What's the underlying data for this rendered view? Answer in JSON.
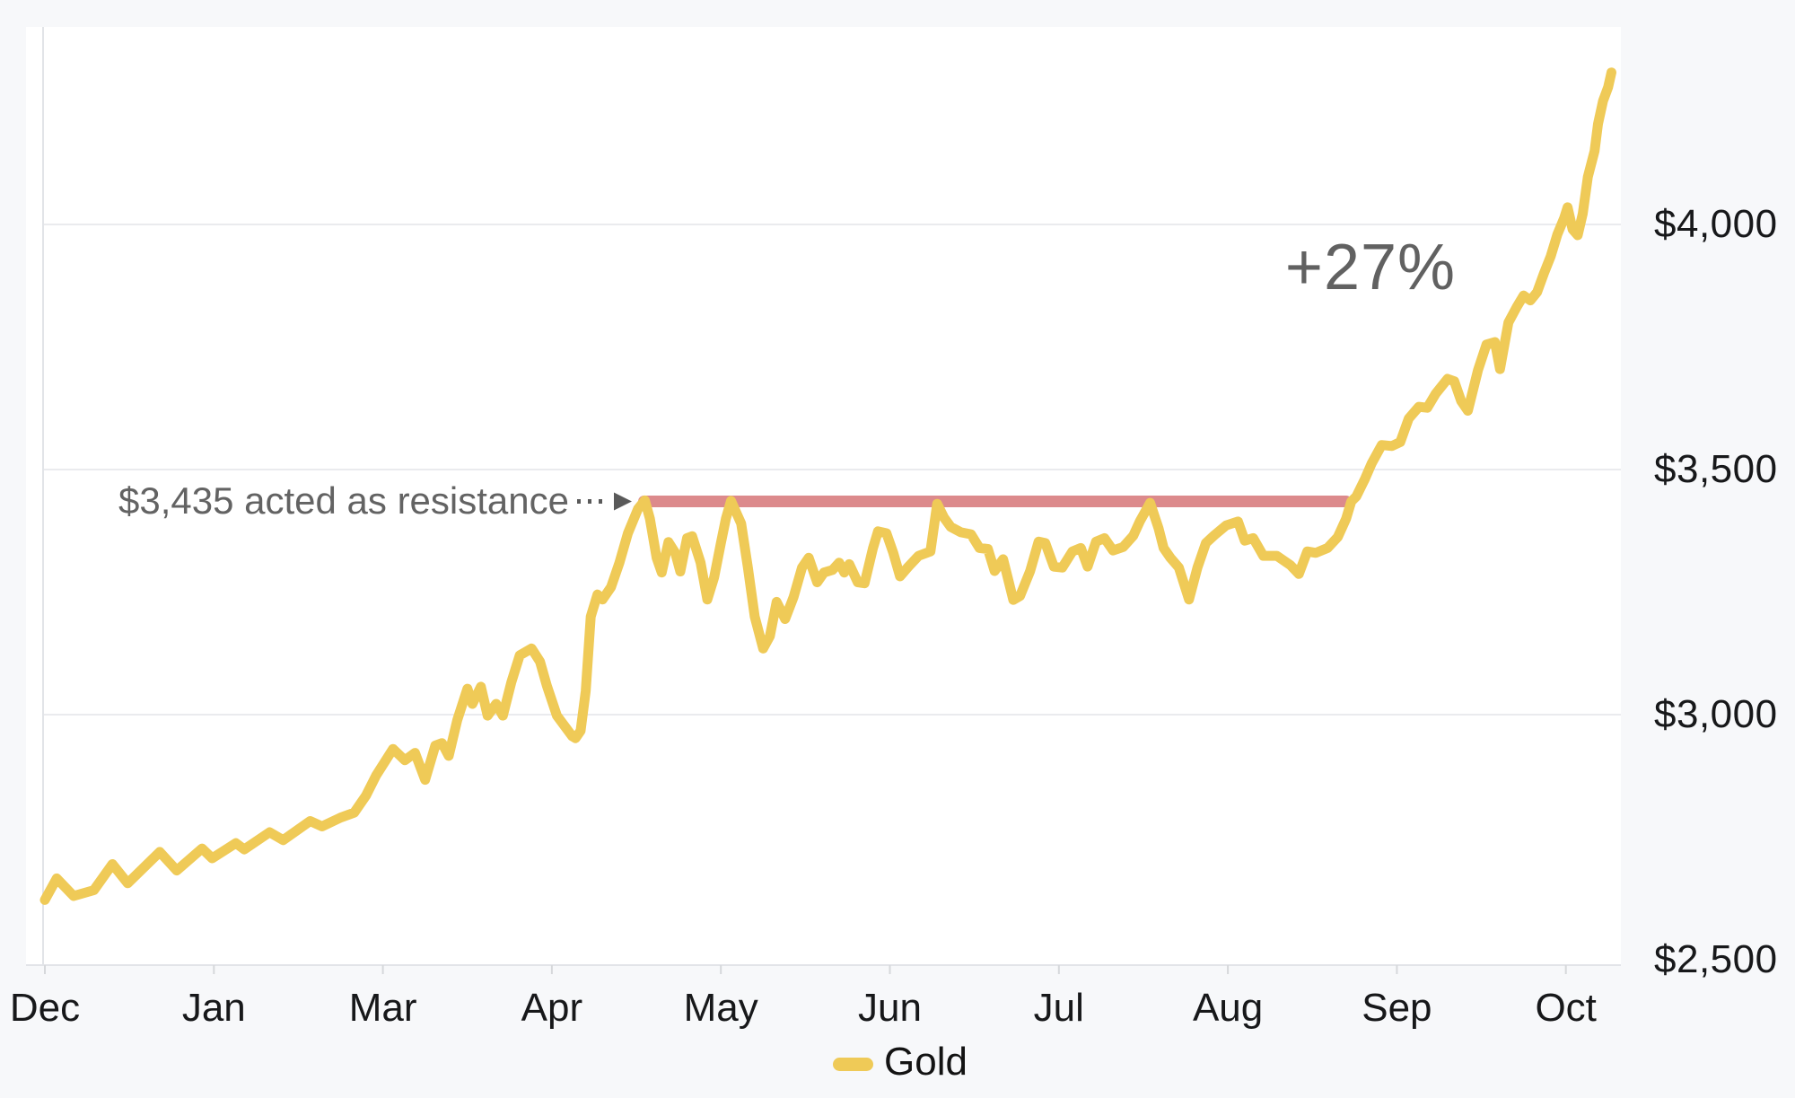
{
  "page": {
    "background": "#F7F8FA"
  },
  "chart_data": {
    "type": "line",
    "title": "",
    "xlabel": "",
    "ylabel": "",
    "x_unit": "month ticks, 0 = Dec, spacing = one x-axis label",
    "ylim": [
      2490,
      4420
    ],
    "grid": "horizontal",
    "legend_position": "bottom-center",
    "x_axis": {
      "labels": [
        "Dec",
        "Jan",
        "Mar",
        "Apr",
        "May",
        "Jun",
        "Jul",
        "Aug",
        "Sep",
        "Oct"
      ]
    },
    "y_axis": {
      "ticks": [
        {
          "label": "$4,000",
          "value": 4000
        },
        {
          "label": "$3,500",
          "value": 3500
        },
        {
          "label": "$3,000",
          "value": 3000
        },
        {
          "label": "$2,500",
          "value": 2500
        }
      ]
    },
    "series": [
      {
        "name": "Gold",
        "color": "#EFCA57",
        "line_width": 11,
        "points": [
          [
            0.0,
            2622
          ],
          [
            0.07,
            2666
          ],
          [
            0.17,
            2630
          ],
          [
            0.29,
            2642
          ],
          [
            0.4,
            2695
          ],
          [
            0.49,
            2656
          ],
          [
            0.68,
            2720
          ],
          [
            0.78,
            2682
          ],
          [
            0.93,
            2727
          ],
          [
            0.99,
            2707
          ],
          [
            1.13,
            2738
          ],
          [
            1.18,
            2725
          ],
          [
            1.33,
            2760
          ],
          [
            1.41,
            2744
          ],
          [
            1.57,
            2783
          ],
          [
            1.64,
            2772
          ],
          [
            1.75,
            2790
          ],
          [
            1.83,
            2800
          ],
          [
            1.9,
            2835
          ],
          [
            1.96,
            2876
          ],
          [
            2.06,
            2930
          ],
          [
            2.13,
            2907
          ],
          [
            2.19,
            2922
          ],
          [
            2.25,
            2867
          ],
          [
            2.31,
            2937
          ],
          [
            2.35,
            2942
          ],
          [
            2.39,
            2916
          ],
          [
            2.44,
            2989
          ],
          [
            2.5,
            3053
          ],
          [
            2.53,
            3022
          ],
          [
            2.58,
            3057
          ],
          [
            2.62,
            2998
          ],
          [
            2.67,
            3022
          ],
          [
            2.71,
            2998
          ],
          [
            2.76,
            3066
          ],
          [
            2.81,
            3121
          ],
          [
            2.88,
            3135
          ],
          [
            2.93,
            3108
          ],
          [
            2.97,
            3059
          ],
          [
            3.03,
            2998
          ],
          [
            3.12,
            2956
          ],
          [
            3.14,
            2952
          ],
          [
            3.17,
            2967
          ],
          [
            3.2,
            3048
          ],
          [
            3.23,
            3200
          ],
          [
            3.27,
            3245
          ],
          [
            3.3,
            3235
          ],
          [
            3.35,
            3260
          ],
          [
            3.4,
            3310
          ],
          [
            3.45,
            3370
          ],
          [
            3.51,
            3420
          ],
          [
            3.55,
            3437
          ],
          [
            3.58,
            3400
          ],
          [
            3.62,
            3320
          ],
          [
            3.65,
            3290
          ],
          [
            3.69,
            3352
          ],
          [
            3.73,
            3330
          ],
          [
            3.76,
            3292
          ],
          [
            3.8,
            3360
          ],
          [
            3.83,
            3364
          ],
          [
            3.88,
            3310
          ],
          [
            3.92,
            3235
          ],
          [
            3.96,
            3280
          ],
          [
            4.0,
            3350
          ],
          [
            4.03,
            3400
          ],
          [
            4.06,
            3436
          ],
          [
            4.12,
            3390
          ],
          [
            4.16,
            3300
          ],
          [
            4.2,
            3200
          ],
          [
            4.25,
            3135
          ],
          [
            4.29,
            3160
          ],
          [
            4.33,
            3230
          ],
          [
            4.38,
            3195
          ],
          [
            4.43,
            3240
          ],
          [
            4.48,
            3300
          ],
          [
            4.52,
            3320
          ],
          [
            4.57,
            3270
          ],
          [
            4.61,
            3290
          ],
          [
            4.66,
            3295
          ],
          [
            4.7,
            3310
          ],
          [
            4.73,
            3290
          ],
          [
            4.76,
            3307
          ],
          [
            4.81,
            3270
          ],
          [
            4.85,
            3268
          ],
          [
            4.9,
            3340
          ],
          [
            4.93,
            3374
          ],
          [
            4.98,
            3370
          ],
          [
            5.02,
            3330
          ],
          [
            5.06,
            3282
          ],
          [
            5.11,
            3302
          ],
          [
            5.17,
            3324
          ],
          [
            5.24,
            3333
          ],
          [
            5.28,
            3430
          ],
          [
            5.32,
            3402
          ],
          [
            5.36,
            3383
          ],
          [
            5.42,
            3372
          ],
          [
            5.48,
            3368
          ],
          [
            5.53,
            3340
          ],
          [
            5.58,
            3338
          ],
          [
            5.62,
            3293
          ],
          [
            5.67,
            3317
          ],
          [
            5.73,
            3234
          ],
          [
            5.77,
            3242
          ],
          [
            5.83,
            3293
          ],
          [
            5.88,
            3353
          ],
          [
            5.92,
            3350
          ],
          [
            5.97,
            3302
          ],
          [
            6.02,
            3300
          ],
          [
            6.08,
            3333
          ],
          [
            6.13,
            3340
          ],
          [
            6.17,
            3302
          ],
          [
            6.22,
            3353
          ],
          [
            6.27,
            3360
          ],
          [
            6.32,
            3335
          ],
          [
            6.38,
            3342
          ],
          [
            6.44,
            3365
          ],
          [
            6.48,
            3395
          ],
          [
            6.54,
            3432
          ],
          [
            6.59,
            3380
          ],
          [
            6.62,
            3340
          ],
          [
            6.66,
            3320
          ],
          [
            6.71,
            3300
          ],
          [
            6.77,
            3235
          ],
          [
            6.82,
            3300
          ],
          [
            6.87,
            3350
          ],
          [
            6.92,
            3366
          ],
          [
            6.99,
            3386
          ],
          [
            7.06,
            3394
          ],
          [
            7.1,
            3355
          ],
          [
            7.15,
            3360
          ],
          [
            7.21,
            3324
          ],
          [
            7.29,
            3324
          ],
          [
            7.37,
            3305
          ],
          [
            7.42,
            3287
          ],
          [
            7.47,
            3333
          ],
          [
            7.52,
            3330
          ],
          [
            7.59,
            3340
          ],
          [
            7.65,
            3362
          ],
          [
            7.7,
            3400
          ],
          [
            7.73,
            3435
          ],
          [
            7.76,
            3445
          ],
          [
            7.81,
            3480
          ],
          [
            7.85,
            3512
          ],
          [
            7.91,
            3550
          ],
          [
            7.97,
            3548
          ],
          [
            8.02,
            3556
          ],
          [
            8.07,
            3604
          ],
          [
            8.13,
            3628
          ],
          [
            8.18,
            3626
          ],
          [
            8.23,
            3655
          ],
          [
            8.3,
            3685
          ],
          [
            8.34,
            3680
          ],
          [
            8.38,
            3640
          ],
          [
            8.42,
            3620
          ],
          [
            8.48,
            3703
          ],
          [
            8.53,
            3755
          ],
          [
            8.58,
            3760
          ],
          [
            8.61,
            3705
          ],
          [
            8.66,
            3800
          ],
          [
            8.71,
            3832
          ],
          [
            8.75,
            3855
          ],
          [
            8.79,
            3845
          ],
          [
            8.83,
            3862
          ],
          [
            8.87,
            3900
          ],
          [
            8.91,
            3935
          ],
          [
            8.95,
            3980
          ],
          [
            8.99,
            4013
          ],
          [
            9.01,
            4035
          ],
          [
            9.04,
            3990
          ],
          [
            9.07,
            3978
          ],
          [
            9.1,
            4022
          ],
          [
            9.13,
            4097
          ],
          [
            9.17,
            4150
          ],
          [
            9.19,
            4205
          ],
          [
            9.22,
            4252
          ],
          [
            9.25,
            4280
          ],
          [
            9.27,
            4310
          ]
        ]
      }
    ],
    "resistance": {
      "label": "$3,435 acted as resistance",
      "value": 3435,
      "t_start": 3.545,
      "t_end": 7.7,
      "color": "#DC8A8C",
      "label_color": "#636363",
      "arrow_color": "#5A5A5A"
    },
    "annotation_pct": {
      "text": "+27%",
      "color": "#616161"
    },
    "legend": {
      "items": [
        {
          "label": "Gold",
          "color": "#EFCA57"
        }
      ]
    },
    "style": {
      "plot_bg": "#FFFFFF",
      "grid_color": "#EAEBEE",
      "axis_line_color": "#E2E4E8",
      "tick_color": "#D6D8DB",
      "label_color": "#17181A",
      "legend_label_color": "#131313"
    }
  }
}
